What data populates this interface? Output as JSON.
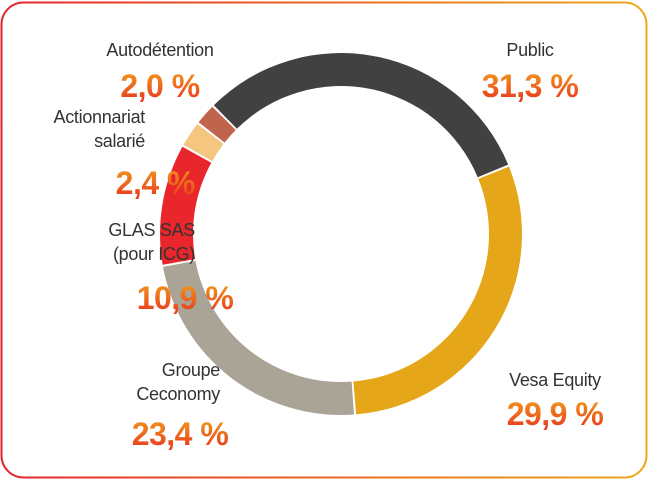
{
  "chart_data": {
    "type": "donut",
    "categories": [
      "Public",
      "Vesa Equity",
      "Groupe\nCeconomy",
      "GLAS SAS\n(pour ICG)",
      "Actionnariat\nsalarié",
      "Autodétention"
    ],
    "values": [
      31.3,
      29.9,
      23.4,
      10.9,
      2.4,
      2.0
    ],
    "value_labels": [
      "31,3 %",
      "29,9 %",
      "23,4 %",
      "10,9 %",
      "2,4 %",
      "2,0 %"
    ],
    "colors": [
      "#414141",
      "#e5a619",
      "#aaa496",
      "#e8262b",
      "#f4c67f",
      "#c1644e"
    ]
  }
}
